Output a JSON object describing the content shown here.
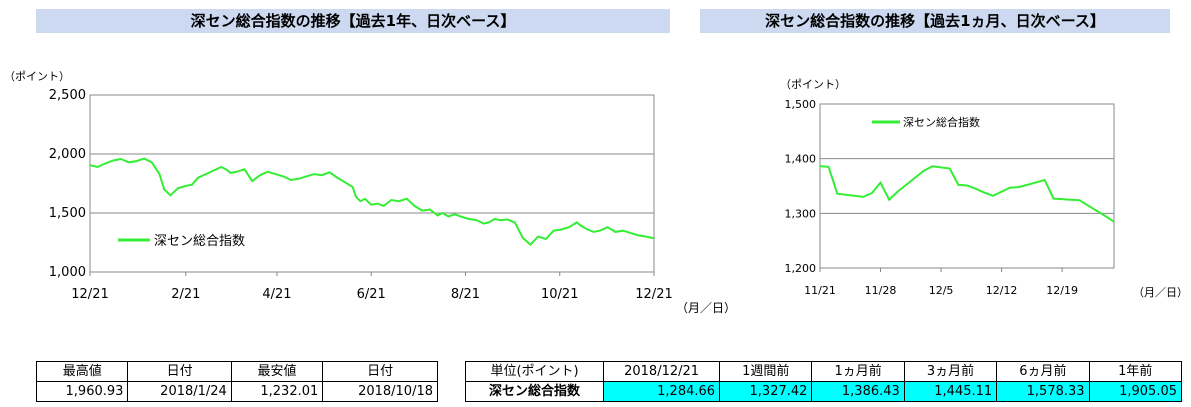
{
  "header_left": "深セン総合指数の推移【過去1年、日次ベース】",
  "header_right": "深セン総合指数の推移【過去1ヵ月、日次ベース】",
  "chart_data": [
    {
      "type": "line",
      "title": "深セン総合指数の推移【過去1年、日次ベース】",
      "ylabel": "（ポイント）",
      "xlabel": "（月／日）",
      "ylim": [
        1000,
        2500
      ],
      "yticks": [
        "1,000",
        "1,500",
        "2,000",
        "2,500"
      ],
      "xticks": [
        "12/21",
        "2/21",
        "4/21",
        "6/21",
        "8/21",
        "10/21",
        "12/21"
      ],
      "grid": true,
      "legend": "bottom-left",
      "line_color": "#33ee33",
      "series": [
        {
          "name": "深セン総合指数",
          "x": [
            0,
            5,
            10,
            15,
            20,
            25,
            30,
            35,
            40,
            45,
            48,
            52,
            57,
            62,
            66,
            70,
            75,
            80,
            85,
            88,
            91,
            95,
            100,
            105,
            110,
            115,
            120,
            125,
            130,
            135,
            140,
            145,
            150,
            155,
            160,
            165,
            170,
            172,
            175,
            178,
            182,
            186,
            190,
            195,
            200,
            205,
            210,
            215,
            220,
            225,
            228,
            232,
            236,
            240,
            245,
            250,
            255,
            258,
            262,
            265,
            270,
            275,
            280,
            285,
            290,
            295,
            300,
            305,
            310,
            315,
            318,
            322,
            326,
            330,
            335,
            340,
            345,
            350,
            355,
            360,
            365
          ],
          "y": [
            1905,
            1890,
            1920,
            1945,
            1958,
            1930,
            1940,
            1961,
            1930,
            1830,
            1700,
            1650,
            1710,
            1730,
            1740,
            1800,
            1830,
            1860,
            1890,
            1870,
            1840,
            1850,
            1870,
            1770,
            1820,
            1850,
            1830,
            1810,
            1780,
            1790,
            1810,
            1830,
            1820,
            1845,
            1800,
            1760,
            1720,
            1640,
            1600,
            1620,
            1570,
            1580,
            1560,
            1610,
            1600,
            1620,
            1560,
            1520,
            1530,
            1480,
            1500,
            1470,
            1490,
            1470,
            1450,
            1440,
            1410,
            1420,
            1450,
            1440,
            1445,
            1420,
            1290,
            1232,
            1300,
            1280,
            1350,
            1360,
            1380,
            1420,
            1390,
            1360,
            1340,
            1350,
            1380,
            1340,
            1350,
            1330,
            1310,
            1300,
            1285
          ]
        }
      ]
    },
    {
      "type": "line",
      "title": "深セン総合指数の推移【過去1ヵ月、日次ベース】",
      "ylabel": "（ポイント）",
      "xlabel": "（月／日）",
      "ylim": [
        1200,
        1500
      ],
      "yticks": [
        "1,200",
        "1,300",
        "1,400",
        "1,500"
      ],
      "xticks": [
        "11/21",
        "11/28",
        "12/5",
        "12/12",
        "12/19"
      ],
      "grid": true,
      "legend": "top-left",
      "line_color": "#33ee33",
      "series": [
        {
          "name": "深セン総合指数",
          "x": [
            0,
            1,
            2,
            5,
            6,
            7,
            8,
            9,
            12,
            13,
            15,
            16,
            17,
            18,
            19,
            20,
            22,
            23,
            26,
            27,
            28,
            29,
            30,
            33,
            34
          ],
          "y": [
            1386.43,
            1385,
            1336,
            1330,
            1337,
            1356,
            1325,
            1340,
            1378,
            1386,
            1382,
            1352,
            1351,
            1345,
            1338,
            1332,
            1347,
            1348,
            1361,
            1327,
            1326,
            1325,
            1324,
            1295,
            1284.66
          ]
        }
      ]
    }
  ],
  "table_left": {
    "headers": [
      "最高値",
      "日付",
      "最安値",
      "日付"
    ],
    "values": [
      "1,960.93",
      "2018/1/24",
      "1,232.01",
      "2018/10/18"
    ]
  },
  "table_right": {
    "headers": [
      "単位(ポイント)",
      "2018/12/21",
      "1週間前",
      "1ヵ月前",
      "3ヵ月前",
      "6ヵ月前",
      "1年前"
    ],
    "row_label": "深セン総合指数",
    "values": [
      "1,284.66",
      "1,327.42",
      "1,386.43",
      "1,445.11",
      "1,578.33",
      "1,905.05"
    ]
  }
}
